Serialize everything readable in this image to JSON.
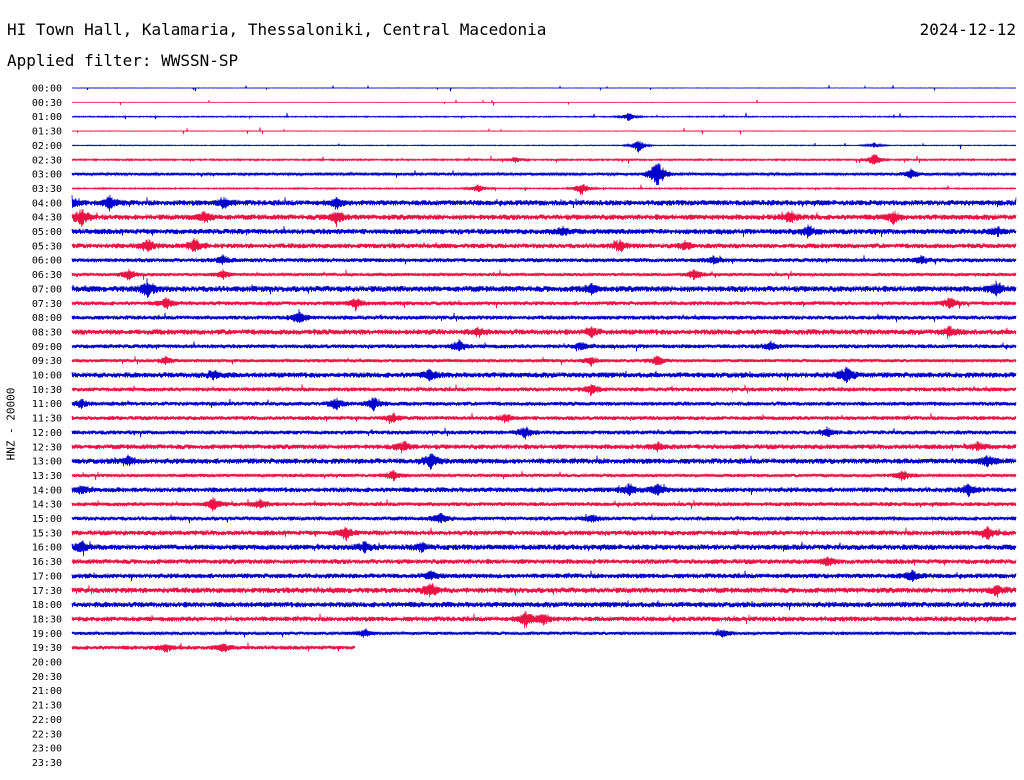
{
  "header": {
    "station": "HI Town Hall, Kalamaria, Thessaloniki, Central Macedonia",
    "date": "2024-12-12",
    "filter": "Applied filter: WWSSN-SP",
    "channel_label": "HNZ - 20000"
  },
  "colors": {
    "trace_a": "#0000cc",
    "trace_b": "#ee1144",
    "text": "#000000"
  },
  "chart_data": {
    "type": "line",
    "title": "HI Town Hall, Kalamaria, Thessaloniki, Central Macedonia",
    "ylabel": "HNZ - 20000",
    "tick_labels": [
      "00:00",
      "00:30",
      "01:00",
      "01:30",
      "02:00",
      "02:30",
      "03:00",
      "03:30",
      "04:00",
      "04:30",
      "05:00",
      "05:30",
      "06:00",
      "06:30",
      "07:00",
      "07:30",
      "08:00",
      "08:30",
      "09:00",
      "09:30",
      "10:00",
      "10:30",
      "11:00",
      "11:30",
      "12:00",
      "12:30",
      "13:00",
      "13:30",
      "14:00",
      "14:30",
      "15:00",
      "15:30",
      "16:00",
      "16:30",
      "17:00",
      "17:30",
      "18:00",
      "18:30",
      "19:00",
      "19:30",
      "20:00",
      "20:30",
      "21:00",
      "21:30",
      "22:00",
      "22:30",
      "23:00",
      "23:30"
    ],
    "rows": [
      {
        "time": "00:00",
        "noise": 0.15,
        "complete": 1,
        "events": []
      },
      {
        "time": "00:30",
        "noise": 0.05,
        "complete": 1,
        "events": []
      },
      {
        "time": "01:00",
        "noise": 0.4,
        "complete": 1,
        "events": [
          [
            0.59,
            3
          ]
        ]
      },
      {
        "time": "01:30",
        "noise": 0.2,
        "complete": 1,
        "events": []
      },
      {
        "time": "02:00",
        "noise": 0.3,
        "complete": 1,
        "events": [
          [
            0.6,
            5
          ],
          [
            0.85,
            2
          ]
        ]
      },
      {
        "time": "02:30",
        "noise": 0.6,
        "complete": 1,
        "events": [
          [
            0.47,
            2
          ],
          [
            0.85,
            5
          ]
        ]
      },
      {
        "time": "03:00",
        "noise": 1.0,
        "complete": 1,
        "events": [
          [
            0.62,
            12
          ],
          [
            0.89,
            4
          ]
        ]
      },
      {
        "time": "03:30",
        "noise": 0.5,
        "complete": 1,
        "events": [
          [
            0.43,
            3
          ],
          [
            0.54,
            5
          ]
        ]
      },
      {
        "time": "04:00",
        "noise": 2.0,
        "complete": 1,
        "events": [
          [
            0.0,
            4
          ],
          [
            0.04,
            5
          ],
          [
            0.16,
            4
          ],
          [
            0.28,
            4
          ]
        ]
      },
      {
        "time": "04:30",
        "noise": 2.0,
        "complete": 1,
        "events": [
          [
            0.01,
            6
          ],
          [
            0.14,
            4
          ],
          [
            0.28,
            5
          ],
          [
            0.76,
            5
          ],
          [
            0.87,
            4
          ]
        ]
      },
      {
        "time": "05:00",
        "noise": 2.0,
        "complete": 1,
        "events": [
          [
            0.52,
            3
          ],
          [
            0.78,
            4
          ],
          [
            0.98,
            3
          ]
        ]
      },
      {
        "time": "05:30",
        "noise": 1.8,
        "complete": 1,
        "events": [
          [
            0.08,
            5
          ],
          [
            0.13,
            5
          ],
          [
            0.58,
            4
          ],
          [
            0.65,
            3
          ]
        ]
      },
      {
        "time": "06:00",
        "noise": 1.5,
        "complete": 1,
        "events": [
          [
            0.16,
            3
          ],
          [
            0.68,
            3
          ],
          [
            0.9,
            3
          ]
        ]
      },
      {
        "time": "06:30",
        "noise": 1.2,
        "complete": 1,
        "events": [
          [
            0.06,
            4
          ],
          [
            0.16,
            3
          ],
          [
            0.66,
            4
          ]
        ]
      },
      {
        "time": "07:00",
        "noise": 2.2,
        "complete": 1,
        "events": [
          [
            0.08,
            6
          ],
          [
            0.55,
            3
          ],
          [
            0.98,
            5
          ]
        ]
      },
      {
        "time": "07:30",
        "noise": 1.5,
        "complete": 1,
        "events": [
          [
            0.1,
            4
          ],
          [
            0.3,
            4
          ],
          [
            0.93,
            4
          ]
        ]
      },
      {
        "time": "08:00",
        "noise": 1.5,
        "complete": 1,
        "events": [
          [
            0.24,
            5
          ]
        ]
      },
      {
        "time": "08:30",
        "noise": 2.0,
        "complete": 1,
        "events": [
          [
            0.43,
            3
          ],
          [
            0.55,
            3
          ],
          [
            0.93,
            3
          ]
        ]
      },
      {
        "time": "09:00",
        "noise": 1.5,
        "complete": 1,
        "events": [
          [
            0.41,
            4
          ],
          [
            0.54,
            3
          ],
          [
            0.74,
            3
          ]
        ]
      },
      {
        "time": "09:30",
        "noise": 1.2,
        "complete": 1,
        "events": [
          [
            0.1,
            3
          ],
          [
            0.55,
            3
          ],
          [
            0.62,
            4
          ]
        ]
      },
      {
        "time": "10:00",
        "noise": 2.0,
        "complete": 1,
        "events": [
          [
            0.15,
            3
          ],
          [
            0.38,
            4
          ],
          [
            0.82,
            6
          ]
        ]
      },
      {
        "time": "10:30",
        "noise": 1.5,
        "complete": 1,
        "events": [
          [
            0.55,
            4
          ]
        ]
      },
      {
        "time": "11:00",
        "noise": 1.5,
        "complete": 1,
        "events": [
          [
            0.01,
            3
          ],
          [
            0.28,
            4
          ],
          [
            0.32,
            5
          ]
        ]
      },
      {
        "time": "11:30",
        "noise": 1.5,
        "complete": 1,
        "events": [
          [
            0.34,
            3
          ],
          [
            0.46,
            3
          ]
        ]
      },
      {
        "time": "12:00",
        "noise": 1.5,
        "complete": 1,
        "events": [
          [
            0.48,
            4
          ],
          [
            0.8,
            3
          ]
        ]
      },
      {
        "time": "12:30",
        "noise": 1.8,
        "complete": 1,
        "events": [
          [
            0.35,
            4
          ],
          [
            0.62,
            3
          ],
          [
            0.96,
            3
          ]
        ]
      },
      {
        "time": "13:00",
        "noise": 2.0,
        "complete": 1,
        "events": [
          [
            0.38,
            6
          ],
          [
            0.06,
            3
          ],
          [
            0.97,
            4
          ]
        ]
      },
      {
        "time": "13:30",
        "noise": 1.2,
        "complete": 1,
        "events": [
          [
            0.34,
            4
          ],
          [
            0.88,
            4
          ]
        ]
      },
      {
        "time": "14:00",
        "noise": 1.8,
        "complete": 1,
        "events": [
          [
            0.01,
            3
          ],
          [
            0.59,
            4
          ],
          [
            0.62,
            4
          ],
          [
            0.95,
            4
          ]
        ]
      },
      {
        "time": "14:30",
        "noise": 1.5,
        "complete": 1,
        "events": [
          [
            0.15,
            5
          ],
          [
            0.2,
            3
          ]
        ]
      },
      {
        "time": "15:00",
        "noise": 1.5,
        "complete": 1,
        "events": [
          [
            0.39,
            4
          ],
          [
            0.55,
            3
          ]
        ]
      },
      {
        "time": "15:30",
        "noise": 1.8,
        "complete": 1,
        "events": [
          [
            0.29,
            4
          ],
          [
            0.97,
            4
          ]
        ]
      },
      {
        "time": "16:00",
        "noise": 2.0,
        "complete": 1,
        "events": [
          [
            0.01,
            4
          ],
          [
            0.31,
            4
          ],
          [
            0.37,
            3
          ]
        ]
      },
      {
        "time": "16:30",
        "noise": 1.8,
        "complete": 1,
        "events": [
          [
            0.8,
            3
          ]
        ]
      },
      {
        "time": "17:00",
        "noise": 1.8,
        "complete": 1,
        "events": [
          [
            0.38,
            3
          ],
          [
            0.89,
            4
          ]
        ]
      },
      {
        "time": "17:30",
        "noise": 2.0,
        "complete": 1,
        "events": [
          [
            0.38,
            5
          ],
          [
            0.98,
            4
          ]
        ]
      },
      {
        "time": "18:00",
        "noise": 2.0,
        "complete": 1,
        "events": []
      },
      {
        "time": "18:30",
        "noise": 1.8,
        "complete": 1,
        "events": [
          [
            0.48,
            6
          ],
          [
            0.5,
            4
          ]
        ]
      },
      {
        "time": "19:00",
        "noise": 1.2,
        "complete": 1,
        "events": [
          [
            0.31,
            3
          ],
          [
            0.69,
            3
          ]
        ]
      },
      {
        "time": "19:30",
        "noise": 1.5,
        "complete": 0.3,
        "events": [
          [
            0.1,
            3
          ],
          [
            0.16,
            3
          ]
        ]
      }
    ]
  }
}
